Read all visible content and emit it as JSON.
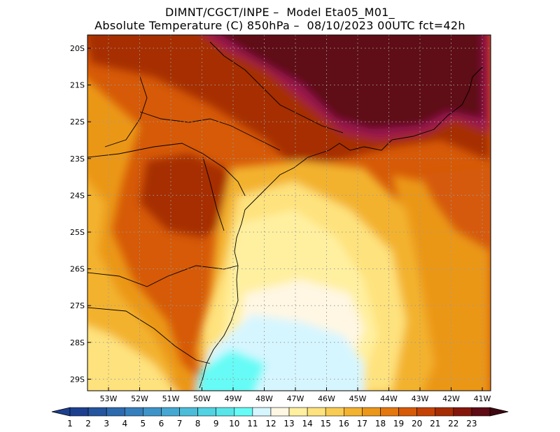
{
  "header": {
    "line1": "DIMNT/CGCT/INPE –  Model Eta05_M01_",
    "line2": "Absolute Temperature (C) 850hPa –  08/10/2023 00UTC fct=42h"
  },
  "axes": {
    "lat_labels": [
      "20S",
      "21S",
      "22S",
      "23S",
      "24S",
      "25S",
      "26S",
      "27S",
      "28S",
      "29S"
    ],
    "lon_labels": [
      "53W",
      "52W",
      "51W",
      "50W",
      "49W",
      "48W",
      "47W",
      "46W",
      "45W",
      "44W",
      "43W",
      "42W",
      "41W"
    ],
    "grid": "dotted"
  },
  "colorbar": {
    "labels": [
      "1",
      "2",
      "3",
      "4",
      "5",
      "6",
      "7",
      "8",
      "9",
      "10",
      "11",
      "12",
      "13",
      "14",
      "15",
      "16",
      "17",
      "18",
      "19",
      "20",
      "21",
      "22",
      "23"
    ],
    "colors": [
      "#1d3f8f",
      "#25559f",
      "#2e6aae",
      "#367fbd",
      "#3e94c8",
      "#45a8d2",
      "#4cbdd9",
      "#52d2e2",
      "#59e6ea",
      "#66fbf6",
      "#d6f6ff",
      "#fff7e3",
      "#fff0a0",
      "#fee27d",
      "#f8cc53",
      "#f3b22f",
      "#eb9719",
      "#e4770e",
      "#d65a07",
      "#c54205",
      "#a62d04",
      "#85160b",
      "#5e0b14"
    ],
    "end_low": "#1d3f8f",
    "end_high": "#3f0710"
  },
  "map": {
    "colors": {
      "ocean_cold": "#66fbf6",
      "ocean_cool": "#d6f6ff",
      "cream": "#fff7e3",
      "pale_yellow": "#fff0a0",
      "yellow": "#fee27d",
      "gold": "#f3b22f",
      "orange": "#eb9719",
      "dark_orange": "#d65a07",
      "red_brown": "#a62d04",
      "brown": "#85160b",
      "maroon": "#5e0b14",
      "magenta": "#9c1450"
    }
  }
}
